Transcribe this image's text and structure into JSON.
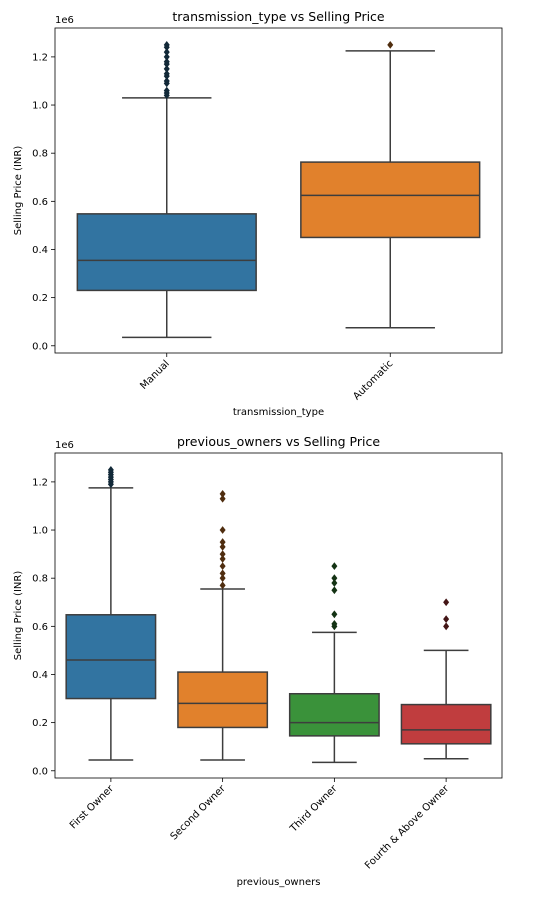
{
  "chart_data": [
    {
      "type": "box",
      "title": "transmission_type vs Selling Price",
      "xlabel": "transmission_type",
      "ylabel": "Selling Price (INR)",
      "y_offset_text": "1e6",
      "ylim": [
        -0.03,
        1.32
      ],
      "yticks": [
        "0.0",
        "0.2",
        "0.4",
        "0.6",
        "0.8",
        "1.0",
        "1.2"
      ],
      "yscale_multiplier": 1000000,
      "grid": false,
      "categories": [
        "Manual",
        "Automatic"
      ],
      "boxes": [
        {
          "category": "Manual",
          "color": "#3274a1",
          "whisker_low": 0.035,
          "q1": 0.23,
          "median": 0.355,
          "q3": 0.548,
          "whisker_high": 1.03,
          "outliers": [
            1.04,
            1.05,
            1.06,
            1.09,
            1.1,
            1.12,
            1.13,
            1.15,
            1.17,
            1.18,
            1.2,
            1.22,
            1.24,
            1.25
          ]
        },
        {
          "category": "Automatic",
          "color": "#e1812c",
          "whisker_low": 0.075,
          "q1": 0.45,
          "median": 0.625,
          "q3": 0.763,
          "whisker_high": 1.225,
          "outliers": [
            1.25
          ]
        }
      ]
    },
    {
      "type": "box",
      "title": "previous_owners vs Selling Price",
      "xlabel": "previous_owners",
      "ylabel": "Selling Price (INR)",
      "y_offset_text": "1e6",
      "ylim": [
        -0.03,
        1.32
      ],
      "yticks": [
        "0.0",
        "0.2",
        "0.4",
        "0.6",
        "0.8",
        "1.0",
        "1.2"
      ],
      "yscale_multiplier": 1000000,
      "grid": false,
      "categories": [
        "First Owner",
        "Second Owner",
        "Third Owner",
        "Fourth & Above Owner"
      ],
      "boxes": [
        {
          "category": "First Owner",
          "color": "#3274a1",
          "whisker_low": 0.045,
          "q1": 0.3,
          "median": 0.46,
          "q3": 0.648,
          "whisker_high": 1.175,
          "outliers": [
            1.19,
            1.2,
            1.21,
            1.22,
            1.23,
            1.24,
            1.25
          ]
        },
        {
          "category": "Second Owner",
          "color": "#e1812c",
          "whisker_low": 0.045,
          "q1": 0.18,
          "median": 0.28,
          "q3": 0.41,
          "whisker_high": 0.755,
          "outliers": [
            0.77,
            0.8,
            0.82,
            0.85,
            0.88,
            0.9,
            0.93,
            0.95,
            1.0,
            1.13,
            1.15
          ]
        },
        {
          "category": "Third Owner",
          "color": "#3a923a",
          "whisker_low": 0.035,
          "q1": 0.145,
          "median": 0.2,
          "q3": 0.32,
          "whisker_high": 0.575,
          "outliers": [
            0.6,
            0.61,
            0.65,
            0.75,
            0.78,
            0.8,
            0.85
          ]
        },
        {
          "category": "Fourth & Above Owner",
          "color": "#c03d3e",
          "whisker_low": 0.05,
          "q1": 0.112,
          "median": 0.17,
          "q3": 0.275,
          "whisker_high": 0.5,
          "outliers": [
            0.6,
            0.63,
            0.7
          ]
        }
      ]
    }
  ]
}
